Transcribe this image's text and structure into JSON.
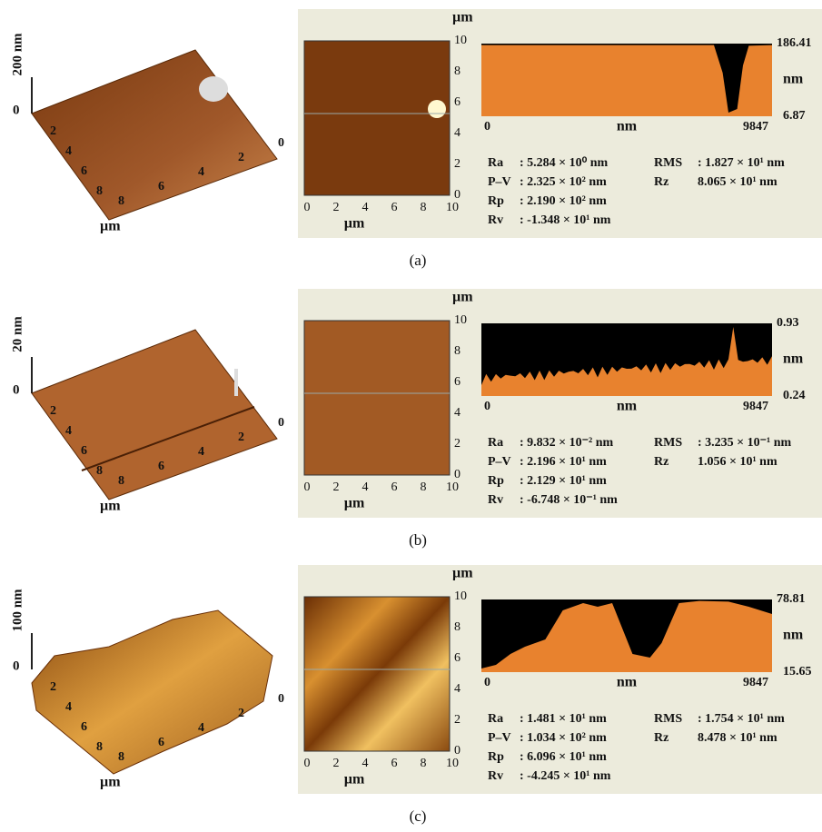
{
  "panels": [
    {
      "label": "(a)",
      "surface": {
        "z_label": "200 nm",
        "z_zero": "0",
        "y_ticks": [
          "2",
          "4",
          "6",
          "8"
        ],
        "x_ticks": [
          "8",
          "6",
          "4",
          "2",
          "0"
        ],
        "unit": "µm"
      },
      "image": {
        "unit_top": "µm",
        "unit_bottom": "µm",
        "y_ticks": [
          "10",
          "8",
          "6",
          "4",
          "2",
          "0"
        ],
        "x_ticks": [
          "0",
          "2",
          "4",
          "6",
          "8",
          "10"
        ]
      },
      "profile": {
        "max": "186.41",
        "min": "6.87",
        "unit": "nm",
        "x_start": "0",
        "x_unit": "nm",
        "x_end": "9847"
      },
      "stats_left": [
        {
          "name": "Ra",
          "value": ": 5.284 × 10⁰  nm"
        },
        {
          "name": "P–V",
          "value": ": 2.325 × 10²  nm"
        },
        {
          "name": "Rp",
          "value": ": 2.190 × 10²  nm"
        },
        {
          "name": "Rv",
          "value": ": -1.348 × 10¹ nm"
        }
      ],
      "stats_right": [
        {
          "name": "RMS",
          "value": ": 1.827 × 10¹ nm"
        },
        {
          "name": "Rz",
          "value": "8.065 × 10¹ nm"
        }
      ]
    },
    {
      "label": "(b)",
      "surface": {
        "z_label": "20 nm",
        "z_zero": "0",
        "y_ticks": [
          "2",
          "4",
          "6",
          "8"
        ],
        "x_ticks": [
          "8",
          "6",
          "4",
          "2",
          "0"
        ],
        "unit": "µm"
      },
      "image": {
        "unit_top": "µm",
        "unit_bottom": "µm",
        "y_ticks": [
          "10",
          "8",
          "6",
          "4",
          "2",
          "0"
        ],
        "x_ticks": [
          "0",
          "2",
          "4",
          "6",
          "8",
          "10"
        ]
      },
      "profile": {
        "max": "0.93",
        "min": "0.24",
        "unit": "nm",
        "x_start": "0",
        "x_unit": "nm",
        "x_end": "9847"
      },
      "stats_left": [
        {
          "name": "Ra",
          "value": ": 9.832 × 10⁻²  nm"
        },
        {
          "name": "P–V",
          "value": ": 2.196 × 10¹  nm"
        },
        {
          "name": "Rp",
          "value": ": 2.129 × 10¹  nm"
        },
        {
          "name": "Rv",
          "value": ": -6.748 × 10⁻¹ nm"
        }
      ],
      "stats_right": [
        {
          "name": "RMS",
          "value": ": 3.235 × 10⁻¹ nm"
        },
        {
          "name": "Rz",
          "value": "1.056 × 10¹ nm"
        }
      ]
    },
    {
      "label": "(c)",
      "surface": {
        "z_label": "100 nm",
        "z_zero": "0",
        "y_ticks": [
          "2",
          "4",
          "6",
          "8"
        ],
        "x_ticks": [
          "8",
          "6",
          "4",
          "2",
          "0"
        ],
        "unit": "µm"
      },
      "image": {
        "unit_top": "µm",
        "unit_bottom": "µm",
        "y_ticks": [
          "10",
          "8",
          "6",
          "4",
          "2",
          "0"
        ],
        "x_ticks": [
          "0",
          "2",
          "4",
          "6",
          "8",
          "10"
        ]
      },
      "profile": {
        "max": "78.81",
        "min": "15.65",
        "unit": "nm",
        "x_start": "0",
        "x_unit": "nm",
        "x_end": "9847"
      },
      "stats_left": [
        {
          "name": "Ra",
          "value": ": 1.481 × 10¹  nm"
        },
        {
          "name": "P–V",
          "value": ": 1.034 × 10²  nm"
        },
        {
          "name": "Rp",
          "value": ": 6.096 × 10¹  nm"
        },
        {
          "name": "Rv",
          "value": ": -4.245 × 10¹ nm"
        }
      ],
      "stats_right": [
        {
          "name": "RMS",
          "value": ": 1.754 × 10¹ nm"
        },
        {
          "name": "Rz",
          "value": "8.478 × 10¹ nm"
        }
      ]
    }
  ]
}
